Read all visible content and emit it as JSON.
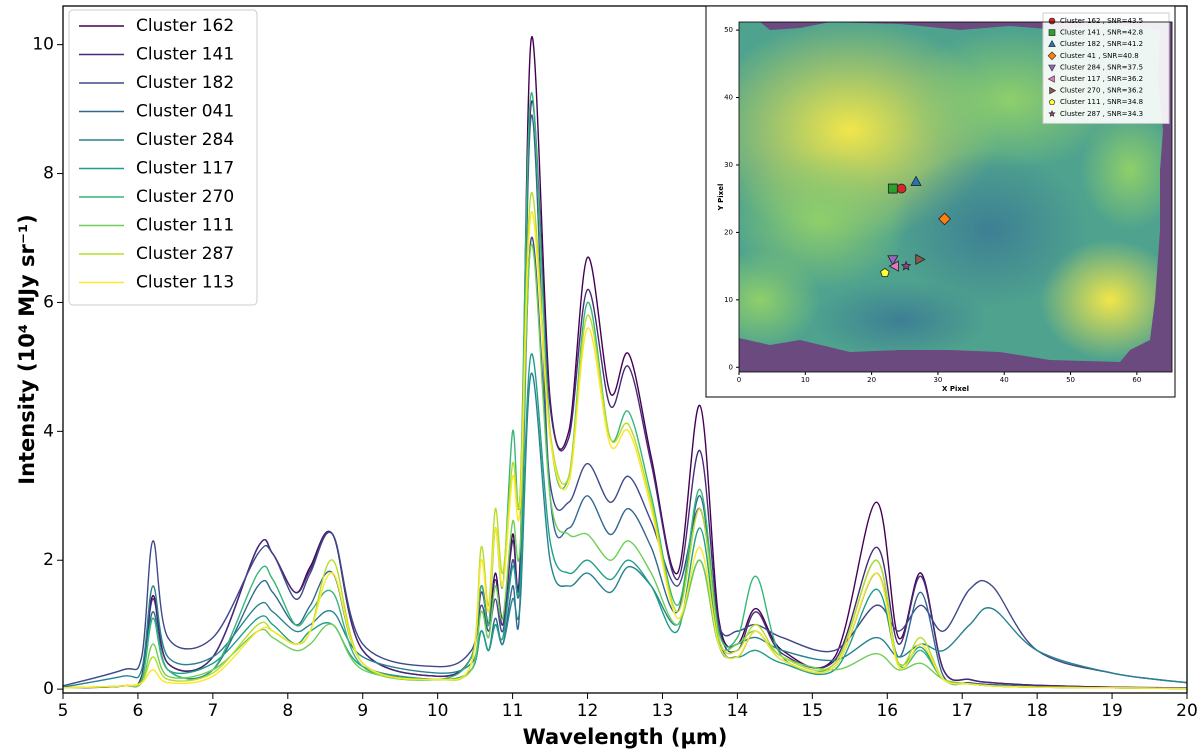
{
  "chart_data": [
    {
      "type": "line",
      "xlabel": "Wavelength (µm)",
      "ylabel": "Intensity (10⁴ MJy sr⁻¹)",
      "xlim": [
        5,
        20
      ],
      "ylim": [
        -0.06,
        10.6
      ],
      "xticks": [
        5,
        6,
        7,
        8,
        9,
        10,
        11,
        12,
        13,
        14,
        15,
        16,
        17,
        18,
        19,
        20
      ],
      "yticks": [
        0,
        2,
        4,
        6,
        8,
        10
      ],
      "legend": "upper-left",
      "x": [
        5,
        5.8,
        6.05,
        6.2,
        6.4,
        7.0,
        7.6,
        7.8,
        8.1,
        8.3,
        8.6,
        9.0,
        10.0,
        10.45,
        10.58,
        10.68,
        10.77,
        10.87,
        11.0,
        11.1,
        11.25,
        11.5,
        11.75,
        12.0,
        12.3,
        12.55,
        12.85,
        13.2,
        13.5,
        13.75,
        14.0,
        14.25,
        14.6,
        15.3,
        15.85,
        16.15,
        16.45,
        16.75,
        17.1,
        17.4,
        18.0,
        19.0,
        20.0
      ],
      "series": [
        {
          "name": "Cluster 162",
          "color": "#440154",
          "values": [
            0.02,
            0.05,
            0.2,
            1.45,
            0.4,
            0.5,
            2.2,
            2.1,
            1.5,
            1.9,
            2.4,
            0.6,
            0.2,
            0.5,
            1.6,
            1.0,
            1.8,
            1.1,
            2.4,
            2.0,
            10.1,
            4.5,
            4.0,
            6.7,
            4.6,
            5.2,
            3.6,
            1.8,
            4.4,
            1.1,
            0.7,
            1.25,
            0.6,
            0.5,
            2.9,
            0.8,
            1.8,
            0.3,
            0.15,
            0.1,
            0.06,
            0.03,
            0.02
          ]
        },
        {
          "name": "Cluster 141",
          "color": "#482878",
          "values": [
            0.02,
            0.05,
            0.2,
            1.4,
            0.4,
            0.5,
            2.2,
            2.1,
            1.5,
            1.85,
            2.4,
            0.6,
            0.2,
            0.5,
            1.5,
            1.0,
            1.7,
            1.0,
            2.3,
            1.9,
            9.1,
            4.4,
            3.9,
            6.2,
            4.4,
            5.0,
            3.5,
            1.7,
            3.7,
            1.0,
            0.6,
            1.2,
            0.55,
            0.45,
            2.2,
            0.7,
            1.75,
            0.3,
            0.15,
            0.1,
            0.06,
            0.03,
            0.02
          ]
        },
        {
          "name": "Cluster 182",
          "color": "#3e4989",
          "values": [
            0.05,
            0.3,
            0.5,
            2.3,
            0.8,
            0.8,
            2.1,
            2.1,
            1.4,
            1.8,
            2.4,
            0.7,
            0.35,
            0.6,
            1.3,
            0.9,
            1.4,
            0.9,
            2.0,
            1.7,
            7.0,
            3.2,
            2.9,
            3.5,
            2.9,
            3.3,
            2.6,
            1.6,
            2.8,
            1.0,
            0.9,
            1.0,
            0.8,
            0.6,
            1.3,
            0.9,
            1.3,
            0.9,
            1.55,
            1.6,
            0.6,
            0.25,
            0.1
          ]
        },
        {
          "name": "Cluster 041",
          "color": "#31688e",
          "values": [
            0.02,
            0.05,
            0.15,
            1.2,
            0.3,
            0.3,
            1.6,
            1.5,
            1.0,
            1.3,
            1.8,
            0.4,
            0.15,
            0.3,
            0.9,
            0.6,
            1.1,
            0.7,
            1.6,
            1.4,
            8.9,
            3.0,
            2.5,
            3.0,
            2.4,
            2.8,
            2.2,
            1.2,
            3.0,
            0.8,
            0.5,
            0.9,
            0.45,
            0.35,
            1.8,
            0.5,
            1.5,
            0.2,
            0.1,
            0.07,
            0.04,
            0.02,
            0.01
          ]
        },
        {
          "name": "Cluster 284",
          "color": "#26828e",
          "values": [
            0.03,
            0.2,
            0.3,
            1.6,
            0.5,
            0.5,
            1.3,
            1.2,
            0.9,
            1.0,
            1.2,
            0.5,
            0.25,
            0.4,
            0.9,
            0.6,
            1.0,
            0.7,
            1.4,
            1.3,
            4.9,
            2.0,
            1.6,
            1.8,
            1.5,
            1.9,
            1.6,
            1.0,
            2.0,
            0.7,
            0.7,
            0.8,
            0.6,
            0.45,
            0.8,
            0.5,
            0.7,
            0.6,
            1.0,
            1.25,
            0.6,
            0.25,
            0.1
          ]
        },
        {
          "name": "Cluster 117",
          "color": "#1f9e89",
          "values": [
            0.02,
            0.05,
            0.15,
            1.1,
            0.3,
            0.4,
            1.1,
            1.0,
            0.7,
            0.9,
            1.0,
            0.35,
            0.15,
            0.3,
            0.9,
            0.6,
            1.0,
            0.8,
            1.9,
            1.6,
            5.2,
            2.3,
            1.8,
            2.0,
            1.7,
            2.0,
            1.6,
            0.9,
            2.5,
            0.7,
            0.5,
            0.6,
            0.4,
            0.3,
            1.55,
            0.4,
            0.65,
            0.15,
            0.08,
            0.05,
            0.03,
            0.02,
            0.01
          ]
        },
        {
          "name": "Cluster 270",
          "color": "#35b779",
          "values": [
            0.02,
            0.05,
            0.15,
            1.1,
            0.3,
            0.3,
            1.8,
            1.7,
            1.0,
            1.2,
            1.5,
            0.35,
            0.15,
            0.5,
            1.6,
            1.0,
            2.5,
            1.6,
            4.0,
            3.0,
            9.25,
            4.0,
            3.3,
            6.0,
            3.9,
            4.3,
            3.0,
            1.3,
            3.1,
            0.9,
            0.8,
            1.75,
            0.5,
            0.4,
            2.0,
            0.4,
            0.6,
            0.15,
            0.08,
            0.05,
            0.03,
            0.02,
            0.01
          ]
        },
        {
          "name": "Cluster 111",
          "color": "#6ece58",
          "values": [
            0.02,
            0.05,
            0.1,
            0.7,
            0.2,
            0.3,
            0.9,
            0.8,
            0.6,
            0.7,
            1.0,
            0.3,
            0.15,
            0.3,
            1.2,
            0.8,
            1.6,
            1.1,
            2.6,
            2.2,
            6.9,
            3.0,
            2.4,
            2.4,
            2.0,
            2.3,
            1.8,
            1.0,
            2.0,
            0.7,
            0.7,
            0.9,
            0.5,
            0.3,
            0.55,
            0.3,
            0.4,
            0.15,
            0.08,
            0.05,
            0.03,
            0.02,
            0.01
          ]
        },
        {
          "name": "Cluster 287",
          "color": "#b5de2b",
          "values": [
            0.02,
            0.05,
            0.1,
            0.5,
            0.15,
            0.25,
            1.0,
            0.9,
            0.7,
            0.9,
            2.0,
            0.4,
            0.15,
            0.4,
            2.2,
            1.3,
            2.8,
            1.8,
            3.5,
            3.0,
            7.7,
            4.0,
            3.3,
            5.8,
            3.9,
            4.1,
            2.9,
            1.2,
            2.8,
            0.8,
            0.6,
            1.0,
            0.5,
            0.4,
            2.0,
            0.4,
            0.8,
            0.15,
            0.08,
            0.05,
            0.03,
            0.02,
            0.01
          ]
        },
        {
          "name": "Cluster 113",
          "color": "#fde725",
          "values": [
            0.02,
            0.05,
            0.1,
            0.3,
            0.1,
            0.2,
            0.9,
            0.9,
            0.7,
            0.9,
            1.8,
            0.4,
            0.15,
            0.4,
            2.0,
            1.2,
            2.5,
            1.6,
            3.3,
            2.8,
            7.4,
            3.9,
            3.2,
            5.6,
            3.8,
            4.0,
            2.8,
            1.1,
            2.2,
            0.7,
            0.5,
            0.9,
            0.45,
            0.35,
            1.8,
            0.35,
            0.7,
            0.15,
            0.08,
            0.05,
            0.03,
            0.02,
            0.01
          ]
        }
      ]
    },
    {
      "type": "scatter",
      "xlabel": "X Pixel",
      "ylabel": "Y Pixel",
      "xlim": [
        0,
        65.3
      ],
      "ylim": [
        -0.7,
        51.2
      ],
      "xticks": [
        0,
        10,
        20,
        30,
        40,
        50,
        60
      ],
      "yticks": [
        0,
        10,
        20,
        30,
        40,
        50
      ],
      "legend": "upper-right",
      "series": [
        {
          "name": "Cluster 162 , SNR=43.5",
          "color": "#d62728",
          "marker": "circle",
          "x": [
            24.5
          ],
          "values": [
            26.5
          ]
        },
        {
          "name": "Cluster 141 , SNR=42.8",
          "color": "#2ca02c",
          "marker": "square",
          "x": [
            23.2
          ],
          "values": [
            26.5
          ]
        },
        {
          "name": "Cluster 182 , SNR=41.2",
          "color": "#1f77b4",
          "marker": "triangle-up",
          "x": [
            26.7
          ],
          "values": [
            27.5
          ]
        },
        {
          "name": "Cluster 41 , SNR=40.8",
          "color": "#ff7f0e",
          "marker": "diamond",
          "x": [
            31
          ],
          "values": [
            22
          ]
        },
        {
          "name": "Cluster 284 , SNR=37.5",
          "color": "#9467bd",
          "marker": "triangle-down",
          "x": [
            23.2
          ],
          "values": [
            16
          ]
        },
        {
          "name": "Cluster 117 , SNR=36.2",
          "color": "#e377c2",
          "marker": "triangle-left",
          "x": [
            23.5
          ],
          "values": [
            15
          ]
        },
        {
          "name": "Cluster 270 , SNR=36.2",
          "color": "#8c564b",
          "marker": "triangle-right",
          "x": [
            27.2
          ],
          "values": [
            16
          ]
        },
        {
          "name": "Cluster 111 , SNR=34.8",
          "color": "#ffff33",
          "marker": "pentagon",
          "x": [
            22
          ],
          "values": [
            14
          ]
        },
        {
          "name": "Cluster 287 , SNR=34.3",
          "color": "#9b3f8a",
          "marker": "star",
          "x": [
            25.2
          ],
          "values": [
            15
          ]
        }
      ]
    }
  ]
}
